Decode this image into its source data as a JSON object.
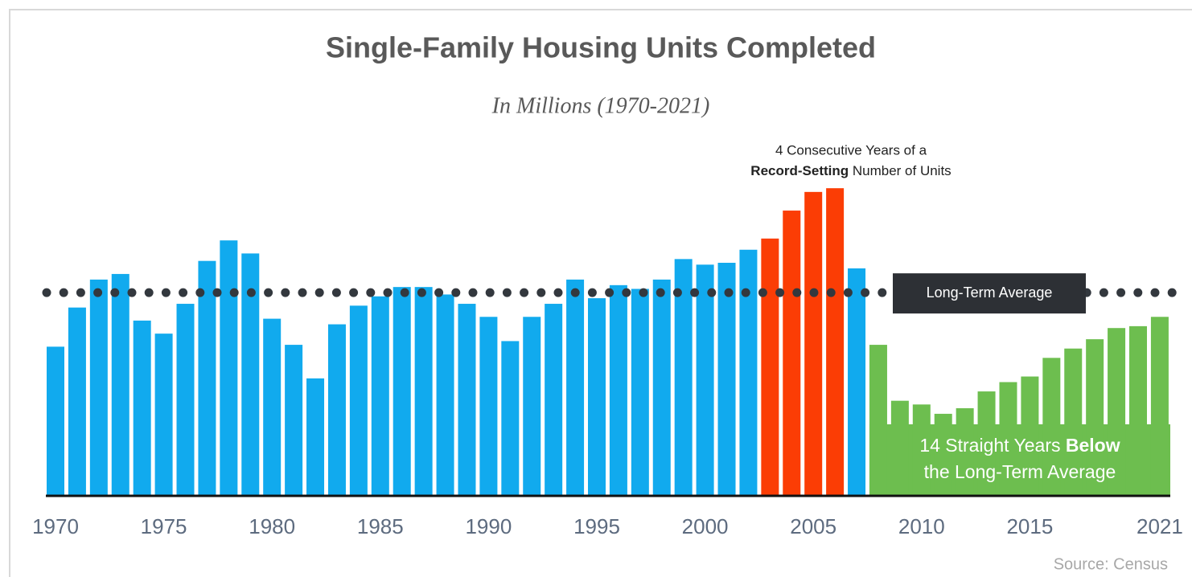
{
  "chart_data": {
    "type": "bar",
    "title": "Single-Family Housing Units Completed",
    "subtitle": "In Millions (1970-2021)",
    "categories": [
      "1970",
      null,
      null,
      null,
      null,
      "1975",
      null,
      null,
      null,
      null,
      "1980",
      null,
      null,
      null,
      null,
      "1985",
      null,
      null,
      null,
      null,
      "1990",
      null,
      null,
      null,
      null,
      "1995",
      null,
      null,
      null,
      null,
      "2000",
      null,
      null,
      null,
      null,
      "2005",
      null,
      null,
      null,
      null,
      "2010",
      null,
      null,
      null,
      null,
      "2015",
      null,
      null,
      null,
      null,
      null,
      "2021"
    ],
    "values": [
      0.8,
      1.01,
      1.16,
      1.19,
      0.94,
      0.87,
      1.03,
      1.26,
      1.37,
      1.3,
      0.95,
      0.81,
      0.63,
      0.92,
      1.02,
      1.07,
      1.12,
      1.12,
      1.08,
      1.03,
      0.96,
      0.83,
      0.96,
      1.03,
      1.16,
      1.06,
      1.13,
      1.11,
      1.16,
      1.27,
      1.24,
      1.25,
      1.32,
      1.38,
      1.53,
      1.63,
      1.65,
      1.22,
      0.81,
      0.51,
      0.49,
      0.44,
      0.47,
      0.56,
      0.61,
      0.64,
      0.74,
      0.79,
      0.84,
      0.9,
      0.91,
      0.96
    ],
    "colors": [
      "#11aaee",
      "#11aaee",
      "#11aaee",
      "#11aaee",
      "#11aaee",
      "#11aaee",
      "#11aaee",
      "#11aaee",
      "#11aaee",
      "#11aaee",
      "#11aaee",
      "#11aaee",
      "#11aaee",
      "#11aaee",
      "#11aaee",
      "#11aaee",
      "#11aaee",
      "#11aaee",
      "#11aaee",
      "#11aaee",
      "#11aaee",
      "#11aaee",
      "#11aaee",
      "#11aaee",
      "#11aaee",
      "#11aaee",
      "#11aaee",
      "#11aaee",
      "#11aaee",
      "#11aaee",
      "#11aaee",
      "#11aaee",
      "#11aaee",
      "#fb3d05",
      "#fb3d05",
      "#fb3d05",
      "#fb3d05",
      "#11aaee",
      "#6dbe4f",
      "#6dbe4f",
      "#6dbe4f",
      "#6dbe4f",
      "#6dbe4f",
      "#6dbe4f",
      "#6dbe4f",
      "#6dbe4f",
      "#6dbe4f",
      "#6dbe4f",
      "#6dbe4f",
      "#6dbe4f",
      "#6dbe4f",
      "#6dbe4f"
    ],
    "reference_line": {
      "label": "Long-Term Average",
      "value": 1.09
    },
    "annotations": {
      "record": [
        "4 Consecutive Years of a",
        "Record-Setting",
        " Number of Units"
      ],
      "below": [
        "14 Straight Years ",
        "Below",
        "the Long-Term Average"
      ]
    },
    "source": "Source: Census"
  }
}
